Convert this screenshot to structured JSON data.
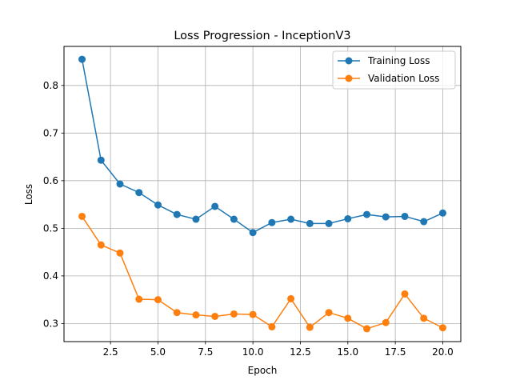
{
  "chart_data": {
    "type": "line",
    "title": "Loss Progression - InceptionV3",
    "xlabel": "Epoch",
    "ylabel": "Loss",
    "xlim": [
      0.05,
      20.95
    ],
    "ylim": [
      0.262,
      0.882
    ],
    "x_ticks": [
      2.5,
      5.0,
      7.5,
      10.0,
      12.5,
      15.0,
      17.5,
      20.0
    ],
    "x_tick_labels": [
      "2.5",
      "5.0",
      "7.5",
      "10.0",
      "12.5",
      "15.0",
      "17.5",
      "20.0"
    ],
    "y_ticks": [
      0.3,
      0.4,
      0.5,
      0.6,
      0.7,
      0.8
    ],
    "y_tick_labels": [
      "0.3",
      "0.4",
      "0.5",
      "0.6",
      "0.7",
      "0.8"
    ],
    "grid": true,
    "legend_position": "top-right",
    "x": [
      1,
      2,
      3,
      4,
      5,
      6,
      7,
      8,
      9,
      10,
      11,
      12,
      13,
      14,
      15,
      16,
      17,
      18,
      19,
      20
    ],
    "series": [
      {
        "name": "Training Loss",
        "color": "#1f77b4",
        "values": [
          0.855,
          0.643,
          0.593,
          0.575,
          0.549,
          0.529,
          0.519,
          0.546,
          0.519,
          0.491,
          0.512,
          0.519,
          0.51,
          0.51,
          0.52,
          0.529,
          0.524,
          0.525,
          0.514,
          0.532
        ]
      },
      {
        "name": "Validation Loss",
        "color": "#ff7f0e",
        "values": [
          0.525,
          0.465,
          0.448,
          0.351,
          0.35,
          0.323,
          0.318,
          0.315,
          0.32,
          0.319,
          0.293,
          0.352,
          0.292,
          0.323,
          0.311,
          0.289,
          0.302,
          0.362,
          0.311,
          0.291
        ]
      }
    ]
  }
}
